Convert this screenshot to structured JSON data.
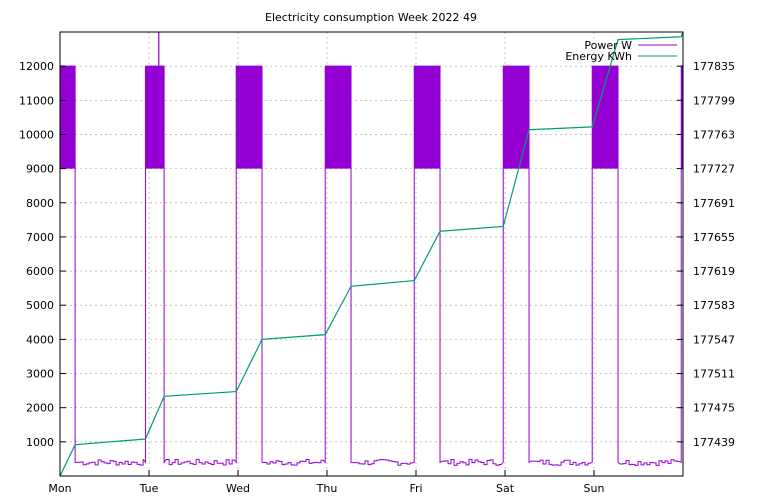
{
  "chart_data": {
    "type": "line",
    "title": "Electricity consumption Week 2022 49",
    "xlabel": "",
    "ylabel": "",
    "x_ticks": [
      "Mon",
      "Tue",
      "Wed",
      "Thu",
      "Fri",
      "Sat",
      "Sun"
    ],
    "x_range_days": [
      0,
      7
    ],
    "y_left": {
      "range": [
        0,
        13000
      ],
      "ticks": [
        1000,
        2000,
        3000,
        4000,
        5000,
        6000,
        7000,
        8000,
        9000,
        10000,
        11000,
        12000
      ]
    },
    "y_right": {
      "range": [
        177403,
        177871
      ],
      "ticks": [
        177439,
        177475,
        177511,
        177547,
        177583,
        177619,
        177655,
        177691,
        177727,
        177763,
        177799,
        177835
      ]
    },
    "grid": true,
    "legend_position": "top-right",
    "colors": {
      "power": "#9400d3",
      "energy": "#009e73"
    },
    "series": [
      {
        "name": "Power W",
        "axis": "left",
        "baseline_w": 400,
        "high_band_w": [
          9000,
          12000
        ],
        "heating_blocks_day": [
          [
            0.0,
            0.17
          ],
          [
            0.96,
            1.17
          ],
          [
            1.98,
            2.27
          ],
          [
            2.98,
            3.27
          ],
          [
            3.98,
            4.27
          ],
          [
            4.98,
            5.27
          ],
          [
            5.98,
            6.27
          ],
          [
            6.98,
            7.0
          ]
        ],
        "spikes": [
          {
            "x_day": 1.11,
            "w": 13000
          }
        ]
      },
      {
        "name": "Energy KWh",
        "axis": "right",
        "points": [
          [
            0.0,
            177403
          ],
          [
            0.17,
            177436
          ],
          [
            0.96,
            177442
          ],
          [
            1.17,
            177487
          ],
          [
            1.98,
            177492
          ],
          [
            2.27,
            177547
          ],
          [
            2.98,
            177552
          ],
          [
            3.27,
            177603
          ],
          [
            3.98,
            177609
          ],
          [
            4.27,
            177661
          ],
          [
            4.98,
            177666
          ],
          [
            5.27,
            177768
          ],
          [
            5.98,
            177771
          ],
          [
            6.27,
            177863
          ],
          [
            6.98,
            177866
          ],
          [
            7.0,
            177871
          ]
        ]
      }
    ]
  }
}
